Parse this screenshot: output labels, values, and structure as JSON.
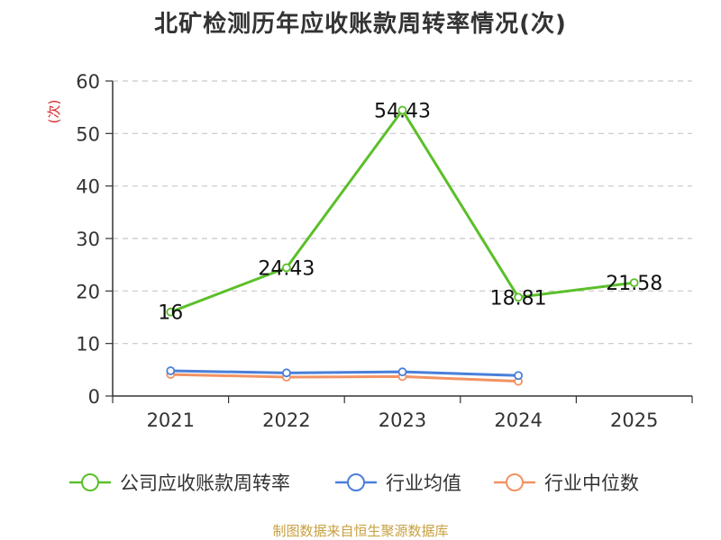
{
  "chart_data": {
    "type": "line",
    "title": "北矿检测历年应收账款周转率情况(次)",
    "ylabel": "(次)",
    "xlabel": "",
    "categories": [
      "2021",
      "2022",
      "2023",
      "2024",
      "2025"
    ],
    "ylim": [
      0,
      60
    ],
    "yticks": [
      0,
      10,
      20,
      30,
      40,
      50,
      60
    ],
    "grid": true,
    "legend_position": "bottom",
    "series": [
      {
        "name": "公司应收账款周转率",
        "color": "#5bbf2a",
        "values": [
          16,
          24.43,
          54.43,
          18.81,
          21.58
        ],
        "labels": [
          "16",
          "24.43",
          "54.43",
          "18.81",
          "21.58"
        ]
      },
      {
        "name": "行业均值",
        "color": "#4a7fd9",
        "values": [
          4.8,
          4.4,
          4.6,
          3.9,
          null
        ]
      },
      {
        "name": "行业中位数",
        "color": "#f29263",
        "values": [
          4.1,
          3.6,
          3.7,
          2.8,
          null
        ]
      }
    ]
  },
  "source": "制图数据来自恒生聚源数据库"
}
